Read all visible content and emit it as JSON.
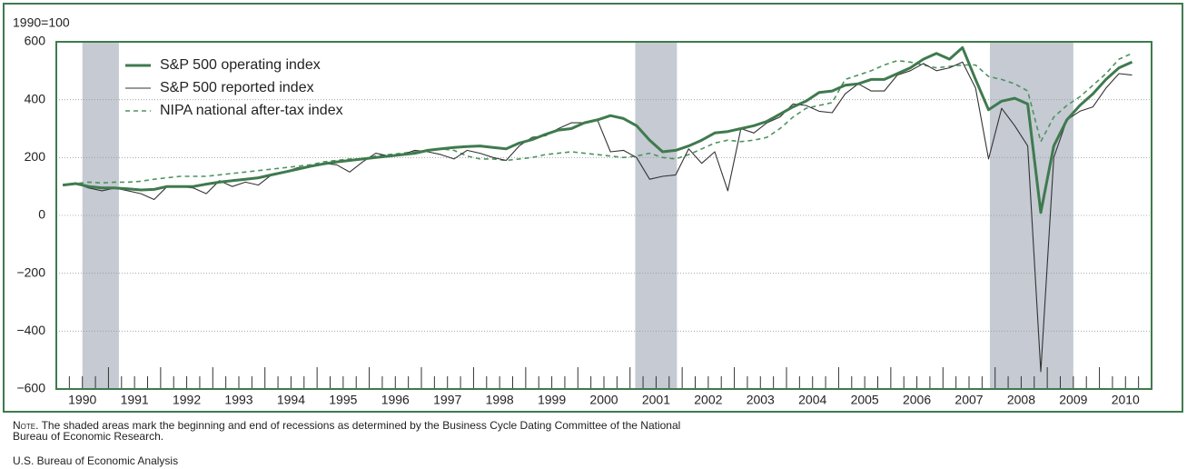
{
  "chart_data": {
    "type": "line",
    "y_axis_label": "1990=100",
    "x": [
      1990.125,
      1990.375,
      1990.625,
      1990.875,
      1991.125,
      1991.375,
      1991.625,
      1991.875,
      1992.125,
      1992.375,
      1992.625,
      1992.875,
      1993.125,
      1993.375,
      1993.625,
      1993.875,
      1994.125,
      1994.375,
      1994.625,
      1994.875,
      1995.125,
      1995.375,
      1995.625,
      1995.875,
      1996.125,
      1996.375,
      1996.625,
      1996.875,
      1997.125,
      1997.375,
      1997.625,
      1997.875,
      1998.125,
      1998.375,
      1998.625,
      1998.875,
      1999.125,
      1999.375,
      1999.625,
      1999.875,
      2000.125,
      2000.375,
      2000.625,
      2000.875,
      2001.125,
      2001.375,
      2001.625,
      2001.875,
      2002.125,
      2002.375,
      2002.625,
      2002.875,
      2003.125,
      2003.375,
      2003.625,
      2003.875,
      2004.125,
      2004.375,
      2004.625,
      2004.875,
      2005.125,
      2005.375,
      2005.625,
      2005.875,
      2006.125,
      2006.375,
      2006.625,
      2006.875,
      2007.125,
      2007.375,
      2007.625,
      2007.875,
      2008.125,
      2008.375,
      2008.625,
      2008.875,
      2009.125,
      2009.375,
      2009.625,
      2009.875,
      2010.125,
      2010.375,
      2010.625
    ],
    "series": [
      {
        "name": "S&P 500 operating index",
        "color": "#3f7a4e",
        "style": "thick",
        "values": [
          105,
          110,
          100,
          95,
          95,
          92,
          88,
          90,
          100,
          100,
          100,
          108,
          115,
          120,
          125,
          130,
          140,
          150,
          160,
          170,
          178,
          185,
          190,
          195,
          200,
          205,
          210,
          215,
          225,
          230,
          235,
          238,
          240,
          235,
          230,
          250,
          262,
          280,
          295,
          300,
          320,
          330,
          345,
          335,
          310,
          260,
          220,
          225,
          240,
          260,
          285,
          290,
          300,
          310,
          325,
          350,
          375,
          395,
          425,
          430,
          450,
          455,
          470,
          470,
          490,
          510,
          540,
          560,
          540,
          580,
          470,
          365,
          395,
          405,
          385,
          10,
          240,
          330,
          380,
          420,
          470,
          510,
          530
        ]
      },
      {
        "name": "S&P 500 reported index",
        "color": "#333333",
        "style": "thin",
        "values": [
          105,
          110,
          95,
          85,
          95,
          85,
          75,
          55,
          100,
          100,
          95,
          75,
          120,
          100,
          115,
          105,
          140,
          150,
          165,
          170,
          180,
          175,
          150,
          185,
          215,
          205,
          210,
          225,
          220,
          210,
          195,
          225,
          215,
          200,
          190,
          240,
          270,
          275,
          300,
          320,
          320,
          330,
          220,
          225,
          200,
          125,
          135,
          140,
          230,
          180,
          220,
          85,
          300,
          285,
          320,
          340,
          385,
          380,
          360,
          355,
          420,
          455,
          430,
          430,
          485,
          500,
          525,
          500,
          510,
          530,
          440,
          195,
          370,
          310,
          240,
          -540,
          200,
          330,
          360,
          375,
          440,
          490,
          485
        ]
      },
      {
        "name": "NIPA national after-tax index",
        "color": "#4e9360",
        "style": "dashed",
        "values": [
          105,
          110,
          115,
          112,
          115,
          115,
          118,
          125,
          130,
          135,
          135,
          135,
          140,
          145,
          150,
          155,
          160,
          165,
          170,
          175,
          185,
          190,
          195,
          195,
          205,
          210,
          215,
          220,
          225,
          230,
          225,
          205,
          195,
          195,
          190,
          195,
          200,
          210,
          215,
          220,
          215,
          210,
          205,
          200,
          205,
          215,
          200,
          195,
          210,
          230,
          250,
          260,
          255,
          260,
          270,
          300,
          340,
          370,
          380,
          390,
          470,
          485,
          500,
          520,
          535,
          530,
          520,
          510,
          515,
          520,
          520,
          480,
          470,
          455,
          430,
          255,
          340,
          380,
          410,
          450,
          490,
          540,
          560
        ]
      }
    ],
    "recessions": [
      [
        1990.5,
        1991.2
      ],
      [
        2001.1,
        2001.9
      ],
      [
        2007.9,
        2009.5
      ]
    ],
    "xlim": [
      1990,
      2011
    ],
    "xticks": [
      {
        "value": 1990.5,
        "label": "1990"
      },
      {
        "value": 1991.5,
        "label": "1991"
      },
      {
        "value": 1992.5,
        "label": "1992"
      },
      {
        "value": 1993.5,
        "label": "1993"
      },
      {
        "value": 1994.5,
        "label": "1994"
      },
      {
        "value": 1995.5,
        "label": "1995"
      },
      {
        "value": 1996.5,
        "label": "1996"
      },
      {
        "value": 1997.5,
        "label": "1997"
      },
      {
        "value": 1998.5,
        "label": "1998"
      },
      {
        "value": 1999.5,
        "label": "1999"
      },
      {
        "value": 2000.5,
        "label": "2000"
      },
      {
        "value": 2001.5,
        "label": "2001"
      },
      {
        "value": 2002.5,
        "label": "2002"
      },
      {
        "value": 2003.5,
        "label": "2003"
      },
      {
        "value": 2004.5,
        "label": "2004"
      },
      {
        "value": 2005.5,
        "label": "2005"
      },
      {
        "value": 2006.5,
        "label": "2006"
      },
      {
        "value": 2007.5,
        "label": "2007"
      },
      {
        "value": 2008.5,
        "label": "2008"
      },
      {
        "value": 2009.5,
        "label": "2009"
      },
      {
        "value": 2010.5,
        "label": "2010"
      }
    ],
    "ylim": [
      -600,
      600
    ],
    "yticks": [
      600,
      400,
      200,
      0,
      {
        "value": -200,
        "label": "−200"
      },
      {
        "value": -400,
        "label": "−400"
      },
      {
        "value": -600,
        "label": "−600"
      }
    ],
    "grid": true,
    "note_label": "Note.",
    "note": "The shaded areas mark the beginning and end of recessions as determined by the Business Cycle Dating Committee of the National Bureau of Economic Research.",
    "source": "U.S. Bureau of Economic Analysis"
  }
}
